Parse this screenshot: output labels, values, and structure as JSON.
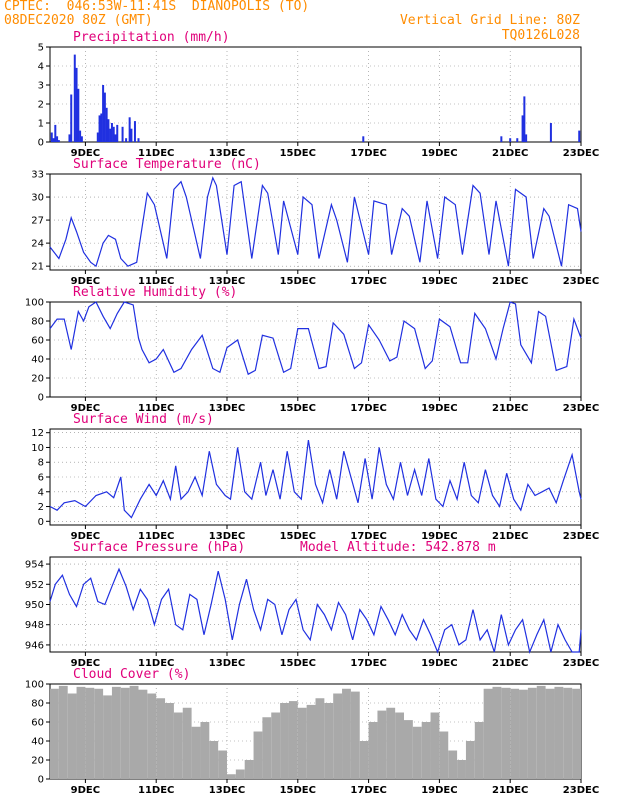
{
  "header": {
    "line1_left": "CPTEC:  046:53W-11:41S  DIANOPOLIS (TO)",
    "line2_left": "08DEC2020 80Z (GMT)",
    "line1_right": "Vertical Grid Line: 80Z",
    "line2_right": "TQ0126L028"
  },
  "colors": {
    "header": "#ff8c00",
    "title": "#e0007a",
    "series": "#2030e0",
    "cloud": "#a9a9a9"
  },
  "chart_data": [
    {
      "type": "bar",
      "title": "Precipitation (mm/h)",
      "x_ticks": [
        "9DEC",
        "11DEC",
        "13DEC",
        "15DEC",
        "17DEC",
        "19DEC",
        "21DEC",
        "23DEC"
      ],
      "x_range_days": [
        8.0,
        23.0
      ],
      "ylim": [
        0,
        5
      ],
      "y_ticks": [
        0,
        1,
        2,
        3,
        4,
        5
      ],
      "x": [
        8.05,
        8.1,
        8.15,
        8.2,
        8.25,
        8.55,
        8.6,
        8.7,
        8.75,
        8.8,
        8.85,
        8.9,
        9.35,
        9.4,
        9.45,
        9.5,
        9.55,
        9.6,
        9.65,
        9.7,
        9.75,
        9.8,
        9.85,
        9.9,
        10.05,
        10.15,
        10.25,
        10.3,
        10.4,
        10.5,
        16.85,
        20.75,
        21.0,
        21.2,
        21.35,
        21.4,
        21.45,
        22.15,
        22.95
      ],
      "values": [
        0.5,
        0.2,
        0.9,
        0.3,
        0.1,
        0.4,
        2.5,
        4.6,
        3.9,
        2.8,
        0.6,
        0.3,
        0.5,
        1.4,
        1.5,
        3.0,
        2.6,
        1.8,
        1.2,
        0.7,
        1.0,
        0.8,
        0.4,
        0.9,
        0.8,
        0.2,
        1.3,
        0.7,
        1.1,
        0.2,
        0.3,
        0.3,
        0.2,
        0.2,
        1.4,
        2.4,
        0.4,
        1.0,
        0.6
      ]
    },
    {
      "type": "line",
      "title": "Surface Temperature (nC)",
      "x_ticks": [
        "9DEC",
        "11DEC",
        "13DEC",
        "15DEC",
        "17DEC",
        "19DEC",
        "21DEC",
        "23DEC"
      ],
      "x_range_days": [
        8.0,
        23.0
      ],
      "ylim": [
        20.5,
        33
      ],
      "y_ticks": [
        21,
        24,
        27,
        30,
        33
      ],
      "x": [
        8.0,
        8.25,
        8.45,
        8.6,
        8.75,
        8.95,
        9.15,
        9.3,
        9.5,
        9.65,
        9.85,
        10.0,
        10.2,
        10.45,
        10.75,
        10.95,
        11.3,
        11.5,
        11.7,
        11.85,
        12.25,
        12.45,
        12.6,
        12.7,
        13.0,
        13.2,
        13.4,
        13.7,
        14.0,
        14.15,
        14.45,
        14.6,
        15.0,
        15.15,
        15.4,
        15.6,
        15.95,
        16.1,
        16.4,
        16.6,
        17.0,
        17.15,
        17.5,
        17.65,
        17.95,
        18.15,
        18.45,
        18.65,
        18.95,
        19.15,
        19.45,
        19.65,
        19.95,
        20.15,
        20.4,
        20.6,
        20.95,
        21.15,
        21.45,
        21.65,
        21.95,
        22.1,
        22.45,
        22.65,
        22.9,
        23.0
      ],
      "values": [
        23.5,
        22.0,
        24.5,
        27.3,
        25.5,
        22.8,
        21.5,
        21.0,
        24.0,
        25.0,
        24.5,
        22.0,
        21.0,
        21.5,
        30.5,
        29.0,
        22.0,
        31.0,
        32.0,
        30.0,
        22.0,
        30.0,
        32.5,
        31.5,
        22.5,
        31.5,
        32.0,
        22.0,
        31.5,
        30.5,
        22.5,
        29.5,
        22.5,
        30.0,
        29.0,
        22.0,
        29.0,
        27.0,
        21.5,
        30.0,
        22.5,
        29.5,
        29.0,
        22.5,
        28.5,
        27.5,
        21.5,
        29.5,
        22.0,
        30.0,
        29.0,
        22.5,
        31.5,
        30.5,
        22.5,
        29.5,
        21.0,
        31.0,
        30.0,
        22.0,
        28.5,
        27.5,
        21.0,
        29.0,
        28.5,
        25.5
      ]
    },
    {
      "type": "line",
      "title": "Relative Humidity (%)",
      "x_ticks": [
        "9DEC",
        "11DEC",
        "13DEC",
        "15DEC",
        "17DEC",
        "19DEC",
        "21DEC",
        "23DEC"
      ],
      "x_range_days": [
        8.0,
        23.0
      ],
      "ylim": [
        0,
        100
      ],
      "y_ticks": [
        0,
        20,
        40,
        60,
        80,
        100
      ],
      "x": [
        8.0,
        8.2,
        8.4,
        8.6,
        8.8,
        8.95,
        9.1,
        9.3,
        9.5,
        9.7,
        9.9,
        10.1,
        10.35,
        10.5,
        10.6,
        10.8,
        11.0,
        11.2,
        11.5,
        11.7,
        12.0,
        12.3,
        12.6,
        12.8,
        13.0,
        13.3,
        13.6,
        13.8,
        14.0,
        14.3,
        14.6,
        14.8,
        15.0,
        15.3,
        15.6,
        15.8,
        16.0,
        16.3,
        16.6,
        16.8,
        17.0,
        17.3,
        17.6,
        17.8,
        18.0,
        18.3,
        18.6,
        18.8,
        19.0,
        19.3,
        19.6,
        19.8,
        20.0,
        20.3,
        20.6,
        20.8,
        21.0,
        21.15,
        21.3,
        21.6,
        21.8,
        22.0,
        22.3,
        22.6,
        22.8,
        23.0
      ],
      "values": [
        72,
        82,
        82,
        50,
        90,
        80,
        95,
        100,
        85,
        72,
        88,
        100,
        97,
        62,
        50,
        36,
        40,
        50,
        26,
        30,
        50,
        65,
        30,
        26,
        52,
        60,
        24,
        28,
        65,
        62,
        26,
        30,
        72,
        72,
        30,
        32,
        78,
        66,
        30,
        36,
        76,
        60,
        38,
        42,
        80,
        72,
        30,
        38,
        82,
        74,
        36,
        36,
        88,
        72,
        40,
        72,
        100,
        98,
        55,
        36,
        90,
        85,
        28,
        32,
        82,
        62
      ]
    },
    {
      "type": "line",
      "title": "Surface Wind (m/s)",
      "x_ticks": [
        "9DEC",
        "11DEC",
        "13DEC",
        "15DEC",
        "17DEC",
        "19DEC",
        "21DEC",
        "23DEC"
      ],
      "x_range_days": [
        8.0,
        23.0
      ],
      "ylim": [
        -0.5,
        12.5
      ],
      "y_ticks": [
        0,
        2,
        4,
        6,
        8,
        10,
        12
      ],
      "x": [
        8.0,
        8.2,
        8.4,
        8.7,
        9.0,
        9.3,
        9.6,
        9.8,
        10.0,
        10.1,
        10.3,
        10.55,
        10.8,
        11.0,
        11.2,
        11.4,
        11.55,
        11.7,
        11.9,
        12.1,
        12.3,
        12.5,
        12.7,
        12.95,
        13.1,
        13.3,
        13.5,
        13.7,
        13.95,
        14.1,
        14.3,
        14.5,
        14.7,
        14.9,
        15.1,
        15.3,
        15.5,
        15.7,
        15.9,
        16.1,
        16.3,
        16.5,
        16.7,
        16.9,
        17.1,
        17.3,
        17.5,
        17.7,
        17.9,
        18.1,
        18.3,
        18.5,
        18.7,
        18.9,
        19.1,
        19.3,
        19.5,
        19.7,
        19.9,
        20.1,
        20.3,
        20.5,
        20.7,
        20.9,
        21.1,
        21.3,
        21.5,
        21.7,
        21.9,
        22.1,
        22.3,
        22.5,
        22.75,
        22.95,
        23.0
      ],
      "values": [
        2.0,
        1.5,
        2.5,
        2.8,
        2.0,
        3.5,
        4.0,
        3.2,
        6.0,
        1.5,
        0.5,
        3.0,
        5.0,
        3.5,
        5.5,
        3.0,
        7.5,
        3.0,
        4.0,
        6.0,
        3.5,
        9.5,
        5.0,
        3.5,
        3.0,
        10.0,
        4.0,
        3.0,
        8.0,
        3.5,
        7.0,
        3.0,
        9.5,
        4.0,
        3.0,
        11.0,
        5.0,
        2.5,
        7.0,
        3.0,
        9.5,
        6.0,
        2.5,
        8.5,
        3.0,
        10.0,
        5.0,
        3.0,
        8.0,
        3.5,
        7.0,
        3.5,
        8.5,
        3.0,
        2.0,
        5.5,
        3.0,
        8.0,
        3.5,
        2.5,
        7.0,
        3.5,
        2.0,
        6.5,
        3.0,
        1.5,
        5.0,
        3.5,
        4.0,
        4.5,
        2.5,
        5.5,
        9.0,
        4.0,
        3.0
      ]
    },
    {
      "type": "line",
      "title": "Surface Pressure (hPa)",
      "annotation": "Model Altitude: 542.878 m",
      "x_ticks": [
        "9DEC",
        "11DEC",
        "13DEC",
        "15DEC",
        "17DEC",
        "19DEC",
        "21DEC",
        "23DEC"
      ],
      "x_range_days": [
        8.0,
        23.0
      ],
      "ylim": [
        945.3,
        954.7
      ],
      "y_ticks": [
        946,
        948,
        950,
        952,
        954
      ],
      "x": [
        8.0,
        8.15,
        8.35,
        8.55,
        8.75,
        8.95,
        9.15,
        9.35,
        9.55,
        9.75,
        9.95,
        10.15,
        10.35,
        10.55,
        10.75,
        10.95,
        11.15,
        11.35,
        11.55,
        11.75,
        11.95,
        12.15,
        12.35,
        12.55,
        12.75,
        12.95,
        13.15,
        13.35,
        13.55,
        13.75,
        13.95,
        14.15,
        14.35,
        14.55,
        14.75,
        14.95,
        15.15,
        15.35,
        15.55,
        15.75,
        15.95,
        16.15,
        16.35,
        16.55,
        16.75,
        16.95,
        17.15,
        17.35,
        17.55,
        17.75,
        17.95,
        18.15,
        18.35,
        18.55,
        18.75,
        18.95,
        19.15,
        19.35,
        19.55,
        19.75,
        19.95,
        20.15,
        20.35,
        20.55,
        20.75,
        20.95,
        21.15,
        21.35,
        21.55,
        21.75,
        21.95,
        22.15,
        22.35,
        22.55,
        22.75,
        22.95,
        23.0
      ],
      "values": [
        950.3,
        952.0,
        952.9,
        951.0,
        949.8,
        952.0,
        952.6,
        950.3,
        950.0,
        951.8,
        953.5,
        951.8,
        949.5,
        951.5,
        950.5,
        948.0,
        950.5,
        951.5,
        948.0,
        947.5,
        951.0,
        950.5,
        947.0,
        950.0,
        953.3,
        950.5,
        946.5,
        950.0,
        952.5,
        949.5,
        947.5,
        950.5,
        950.0,
        947.0,
        949.5,
        950.5,
        947.5,
        946.5,
        950.0,
        949.0,
        947.5,
        950.2,
        949.0,
        946.5,
        949.5,
        948.5,
        947.0,
        949.8,
        948.5,
        947.0,
        949.0,
        947.5,
        946.5,
        948.5,
        947.0,
        945.0,
        947.5,
        948.0,
        946.0,
        946.5,
        949.5,
        946.5,
        947.5,
        945.0,
        949.0,
        946.0,
        947.5,
        948.5,
        945.0,
        947.0,
        948.5,
        945.3,
        948.0,
        946.5,
        945.0,
        945.0,
        947.5
      ]
    },
    {
      "type": "bar",
      "title": "Cloud Cover (%)",
      "x_ticks": [
        "9DEC",
        "11DEC",
        "13DEC",
        "15DEC",
        "17DEC",
        "19DEC",
        "21DEC",
        "23DEC"
      ],
      "x_range_days": [
        8.0,
        23.0
      ],
      "ylim": [
        0,
        100
      ],
      "y_ticks": [
        0,
        20,
        40,
        60,
        80,
        100
      ],
      "x": [
        8.0,
        8.25,
        8.5,
        8.75,
        9.0,
        9.25,
        9.5,
        9.75,
        10.0,
        10.25,
        10.5,
        10.75,
        11.0,
        11.25,
        11.5,
        11.75,
        12.0,
        12.25,
        12.5,
        12.75,
        13.0,
        13.25,
        13.5,
        13.75,
        14.0,
        14.25,
        14.5,
        14.75,
        15.0,
        15.25,
        15.5,
        15.75,
        16.0,
        16.25,
        16.5,
        16.75,
        17.0,
        17.25,
        17.5,
        17.75,
        18.0,
        18.25,
        18.5,
        18.75,
        19.0,
        19.25,
        19.5,
        19.75,
        20.0,
        20.25,
        20.5,
        20.75,
        21.0,
        21.25,
        21.5,
        21.75,
        22.0,
        22.25,
        22.5,
        22.75
      ],
      "values": [
        95,
        98,
        90,
        97,
        96,
        95,
        88,
        97,
        96,
        98,
        94,
        90,
        85,
        80,
        70,
        75,
        55,
        60,
        40,
        30,
        5,
        10,
        20,
        50,
        65,
        70,
        80,
        82,
        75,
        78,
        85,
        80,
        90,
        95,
        92,
        40,
        60,
        72,
        75,
        70,
        62,
        55,
        60,
        70,
        50,
        30,
        20,
        40,
        60,
        95,
        97,
        96,
        95,
        94,
        96,
        98,
        95,
        97,
        96,
        95
      ]
    }
  ]
}
